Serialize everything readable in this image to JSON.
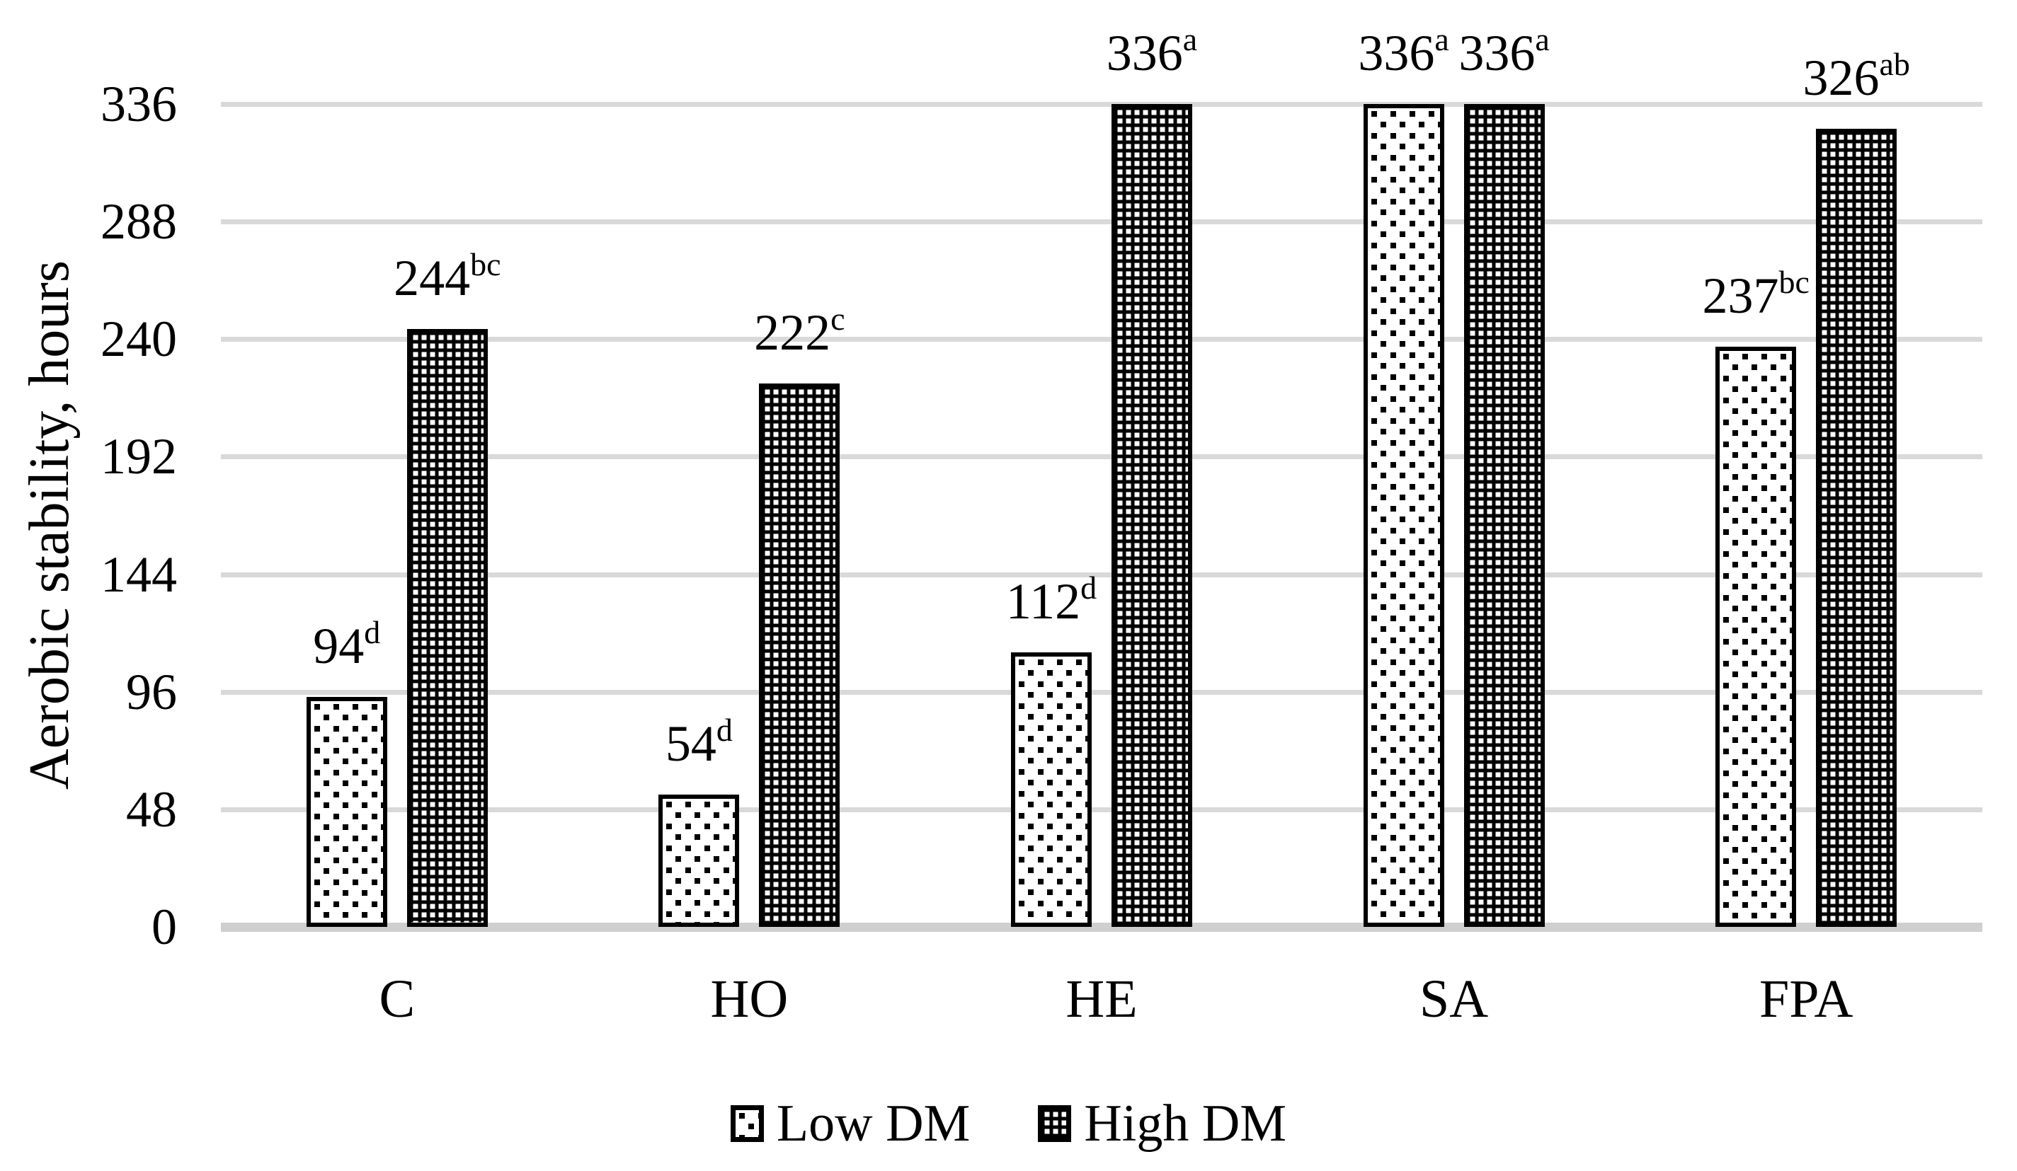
{
  "figure": {
    "background": "#ffffff",
    "text_color": "#000000",
    "gridline_color": "#d9d9d9",
    "baseline_color": "#cfcfcf"
  },
  "y_axis": {
    "title": "Aerobic stability, hours",
    "tick_labels": [
      "336",
      "288",
      "240",
      "192",
      "144",
      "96",
      "48",
      "0"
    ],
    "min": 0,
    "max": 336,
    "step": 48
  },
  "x_axis": {
    "categories": [
      "C",
      "HO",
      "HE",
      "SA",
      "FPA"
    ]
  },
  "legend": {
    "position": "bottom-center",
    "items": [
      {
        "label": "Low DM",
        "swatch": "black-dots-on-white"
      },
      {
        "label": "High DM",
        "swatch": "white-dots-on-black"
      }
    ]
  },
  "chart_data": {
    "type": "bar",
    "title": "",
    "xlabel": "",
    "ylabel": "Aerobic stability, hours",
    "ylim": [
      0,
      336
    ],
    "ytick_step": 48,
    "grid": true,
    "legend_position": "bottom",
    "categories": [
      "C",
      "HO",
      "HE",
      "SA",
      "FPA"
    ],
    "series": [
      {
        "name": "Low DM",
        "pattern": "black-dots-on-white",
        "values": [
          94,
          54,
          112,
          336,
          237
        ],
        "significance": [
          "d",
          "d",
          "d",
          "a",
          "bc"
        ]
      },
      {
        "name": "High DM",
        "pattern": "white-dots-on-black",
        "values": [
          244,
          222,
          336,
          336,
          326
        ],
        "significance": [
          "bc",
          "c",
          "a",
          "a",
          "ab"
        ]
      }
    ]
  }
}
